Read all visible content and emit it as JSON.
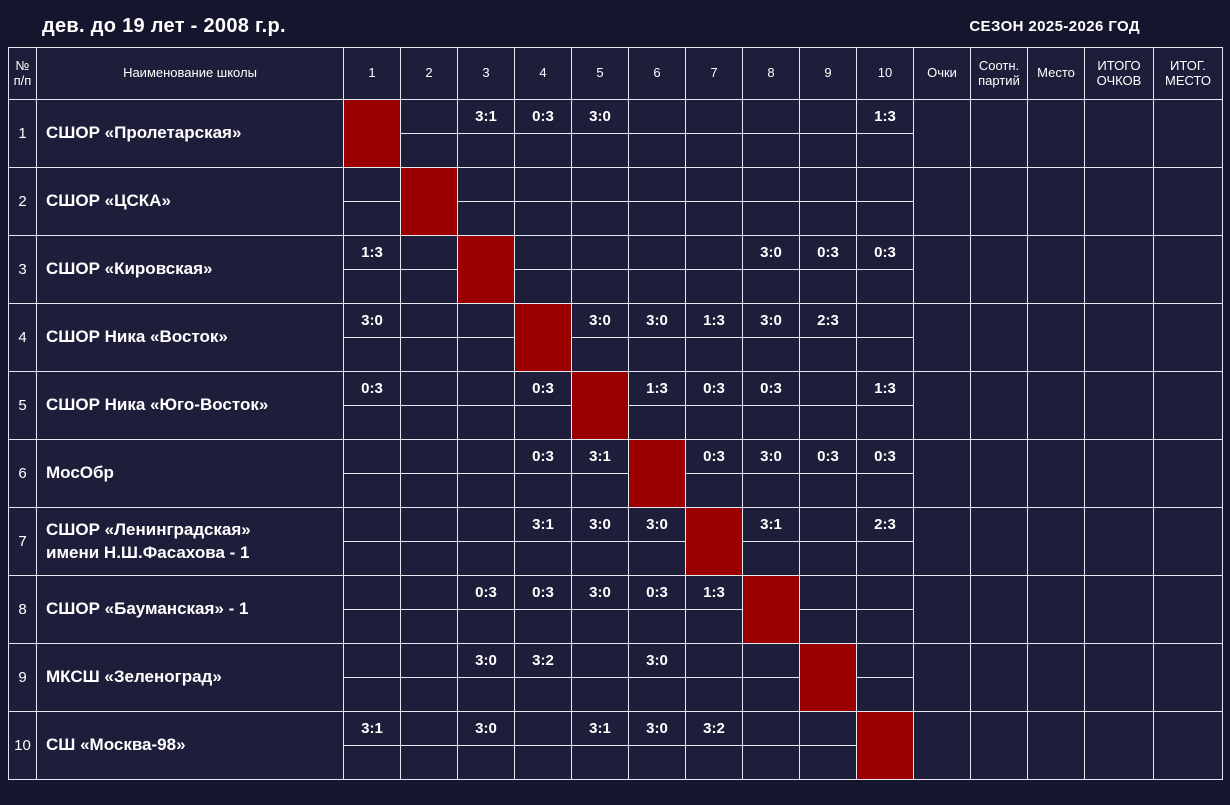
{
  "meta": {
    "title": "дев. до 19 лет - 2008 г.р.",
    "season": "СЕЗОН 2025-2026 ГОД"
  },
  "colors": {
    "page_bg": "#15152d",
    "cell_bg": "#1e1e3b",
    "border": "#e8e8f0",
    "diagonal": "#9a0000",
    "text": "#ffffff"
  },
  "table": {
    "headers": {
      "num": "№ п/п",
      "school": "Наименование школы",
      "rounds": [
        "1",
        "2",
        "3",
        "4",
        "5",
        "6",
        "7",
        "8",
        "9",
        "10"
      ],
      "points": "Очки",
      "set_ratio": "Соотн. партий",
      "place": "Место",
      "total_points": "ИТОГО ОЧКОВ",
      "final_place": "ИТОГ. МЕСТО"
    },
    "teams": [
      {
        "num": "1",
        "name": "СШОР «Пролетарская»",
        "results": [
          "",
          "",
          "3:1",
          "0:3",
          "3:0",
          "",
          "",
          "",
          "",
          "1:3"
        ],
        "points": "",
        "set_ratio": "",
        "place": "",
        "total_points": "",
        "final_place": ""
      },
      {
        "num": "2",
        "name": "СШОР «ЦСКА»",
        "results": [
          "",
          "",
          "",
          "",
          "",
          "",
          "",
          "",
          "",
          ""
        ],
        "points": "",
        "set_ratio": "",
        "place": "",
        "total_points": "",
        "final_place": ""
      },
      {
        "num": "3",
        "name": "СШОР «Кировская»",
        "results": [
          "1:3",
          "",
          "",
          "",
          "",
          "",
          "",
          "3:0",
          "0:3",
          "0:3"
        ],
        "points": "",
        "set_ratio": "",
        "place": "",
        "total_points": "",
        "final_place": ""
      },
      {
        "num": "4",
        "name": "СШОР Ника «Восток»",
        "results": [
          "3:0",
          "",
          "",
          "",
          "3:0",
          "3:0",
          "1:3",
          "3:0",
          "2:3",
          ""
        ],
        "points": "",
        "set_ratio": "",
        "place": "",
        "total_points": "",
        "final_place": ""
      },
      {
        "num": "5",
        "name": "СШОР Ника «Юго-Восток»",
        "results": [
          "0:3",
          "",
          "",
          "0:3",
          "",
          "1:3",
          "0:3",
          "0:3",
          "",
          "1:3"
        ],
        "points": "",
        "set_ratio": "",
        "place": "",
        "total_points": "",
        "final_place": ""
      },
      {
        "num": "6",
        "name": "МосОбр",
        "results": [
          "",
          "",
          "",
          "0:3",
          "3:1",
          "",
          "0:3",
          "3:0",
          "0:3",
          "0:3"
        ],
        "points": "",
        "set_ratio": "",
        "place": "",
        "total_points": "",
        "final_place": ""
      },
      {
        "num": "7",
        "name": "СШОР «Ленинградская»\nимени Н.Ш.Фасахова - 1",
        "results": [
          "",
          "",
          "",
          "3:1",
          "3:0",
          "3:0",
          "",
          "3:1",
          "",
          "2:3"
        ],
        "points": "",
        "set_ratio": "",
        "place": "",
        "total_points": "",
        "final_place": ""
      },
      {
        "num": "8",
        "name": "СШОР «Бауманская» - 1",
        "results": [
          "",
          "",
          "0:3",
          "0:3",
          "3:0",
          "0:3",
          "1:3",
          "",
          "",
          ""
        ],
        "points": "",
        "set_ratio": "",
        "place": "",
        "total_points": "",
        "final_place": ""
      },
      {
        "num": "9",
        "name": "МКСШ «Зеленоград»",
        "results": [
          "",
          "",
          "3:0",
          "3:2",
          "",
          "3:0",
          "",
          "",
          "",
          ""
        ],
        "points": "",
        "set_ratio": "",
        "place": "",
        "total_points": "",
        "final_place": ""
      },
      {
        "num": "10",
        "name": "СШ «Москва-98»",
        "results": [
          "3:1",
          "",
          "3:0",
          "",
          "3:1",
          "3:0",
          "3:2",
          "",
          "",
          ""
        ],
        "points": "",
        "set_ratio": "",
        "place": "",
        "total_points": "",
        "final_place": ""
      }
    ]
  }
}
